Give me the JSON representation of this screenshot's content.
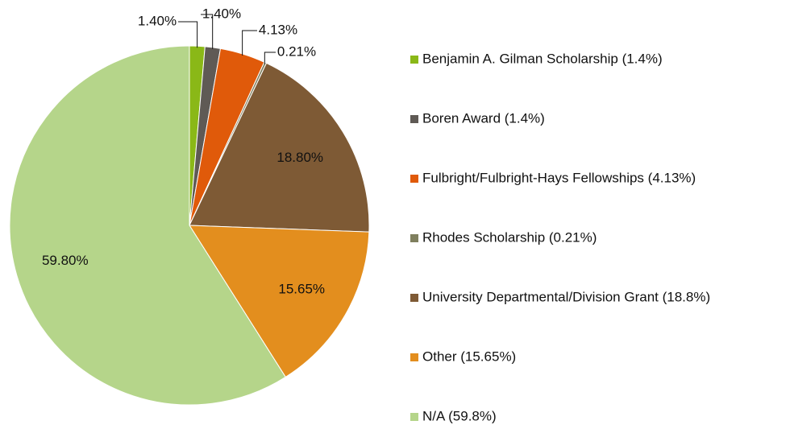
{
  "chart_data": {
    "type": "pie",
    "categories": [
      "Benjamin A. Gilman Scholarship (1.4%)",
      "Boren Award (1.4%)",
      "Fulbright/Fulbright-Hays Fellowships (4.13%)",
      "Rhodes Scholarship (0.21%)",
      "University Departmental/Division Grant (18.8%)",
      "Other (15.65%)",
      "N/A (59.8%)"
    ],
    "values": [
      1.4,
      1.4,
      4.13,
      0.21,
      18.8,
      15.65,
      59.8
    ],
    "value_labels": [
      "1.40%",
      "1.40%",
      "4.13%",
      "0.21%",
      "18.80%",
      "15.65%",
      "59.80%"
    ],
    "colors": [
      "#8ab817",
      "#5f5a55",
      "#e05a0a",
      "#7f7f5e",
      "#7e5a35",
      "#e38e1e",
      "#b5d58a"
    ],
    "legend": "right"
  }
}
